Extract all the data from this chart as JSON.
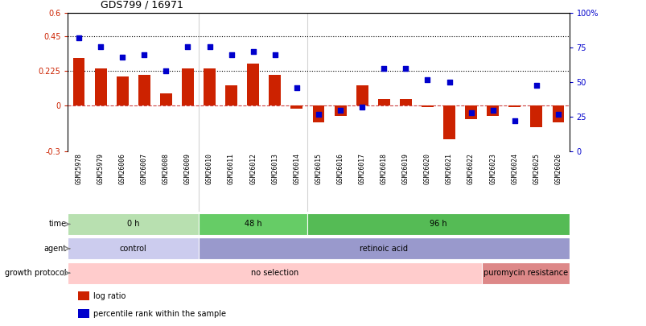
{
  "title": "GDS799 / 16971",
  "samples": [
    "GSM25978",
    "GSM25979",
    "GSM26006",
    "GSM26007",
    "GSM26008",
    "GSM26009",
    "GSM26010",
    "GSM26011",
    "GSM26012",
    "GSM26013",
    "GSM26014",
    "GSM26015",
    "GSM26016",
    "GSM26017",
    "GSM26018",
    "GSM26019",
    "GSM26020",
    "GSM26021",
    "GSM26022",
    "GSM26023",
    "GSM26024",
    "GSM26025",
    "GSM26026"
  ],
  "log_ratio": [
    0.31,
    0.24,
    0.19,
    0.2,
    0.08,
    0.24,
    0.24,
    0.13,
    0.27,
    0.2,
    -0.02,
    -0.11,
    -0.07,
    0.13,
    0.04,
    0.04,
    -0.01,
    -0.22,
    -0.09,
    -0.07,
    -0.01,
    -0.14,
    -0.11
  ],
  "percentile_rank": [
    82,
    76,
    68,
    70,
    58,
    76,
    76,
    70,
    72,
    70,
    46,
    27,
    30,
    32,
    60,
    60,
    52,
    50,
    28,
    30,
    22,
    48,
    27
  ],
  "left_yticks": [
    -0.3,
    0.0,
    0.225,
    0.45,
    0.6
  ],
  "left_ytick_labels": [
    "-0.3",
    "0",
    "0.225",
    "0.45",
    "0.6"
  ],
  "right_yticks": [
    0,
    25,
    50,
    75,
    100
  ],
  "right_ytick_labels": [
    "0",
    "25",
    "50",
    "75",
    "100%"
  ],
  "hlines": [
    0.225,
    0.45
  ],
  "bar_color": "#cc2200",
  "dot_color": "#0000cc",
  "zero_line_color": "#cc4444",
  "time_groups": [
    {
      "text": "0 h",
      "start": 0,
      "end": 6,
      "color": "#b8e0b0"
    },
    {
      "text": "48 h",
      "start": 6,
      "end": 11,
      "color": "#66cc66"
    },
    {
      "text": "96 h",
      "start": 11,
      "end": 23,
      "color": "#55bb55"
    }
  ],
  "agent_groups": [
    {
      "text": "control",
      "start": 0,
      "end": 6,
      "color": "#ccccee"
    },
    {
      "text": "retinoic acid",
      "start": 6,
      "end": 23,
      "color": "#9999cc"
    }
  ],
  "growth_groups": [
    {
      "text": "no selection",
      "start": 0,
      "end": 19,
      "color": "#ffcccc"
    },
    {
      "text": "puromycin resistance",
      "start": 19,
      "end": 23,
      "color": "#dd8888"
    }
  ],
  "legend": [
    {
      "color": "#cc2200",
      "label": "log ratio"
    },
    {
      "color": "#0000cc",
      "label": "percentile rank within the sample"
    }
  ],
  "group_dividers": [
    5.5,
    10.5
  ],
  "bar_width": 0.55
}
